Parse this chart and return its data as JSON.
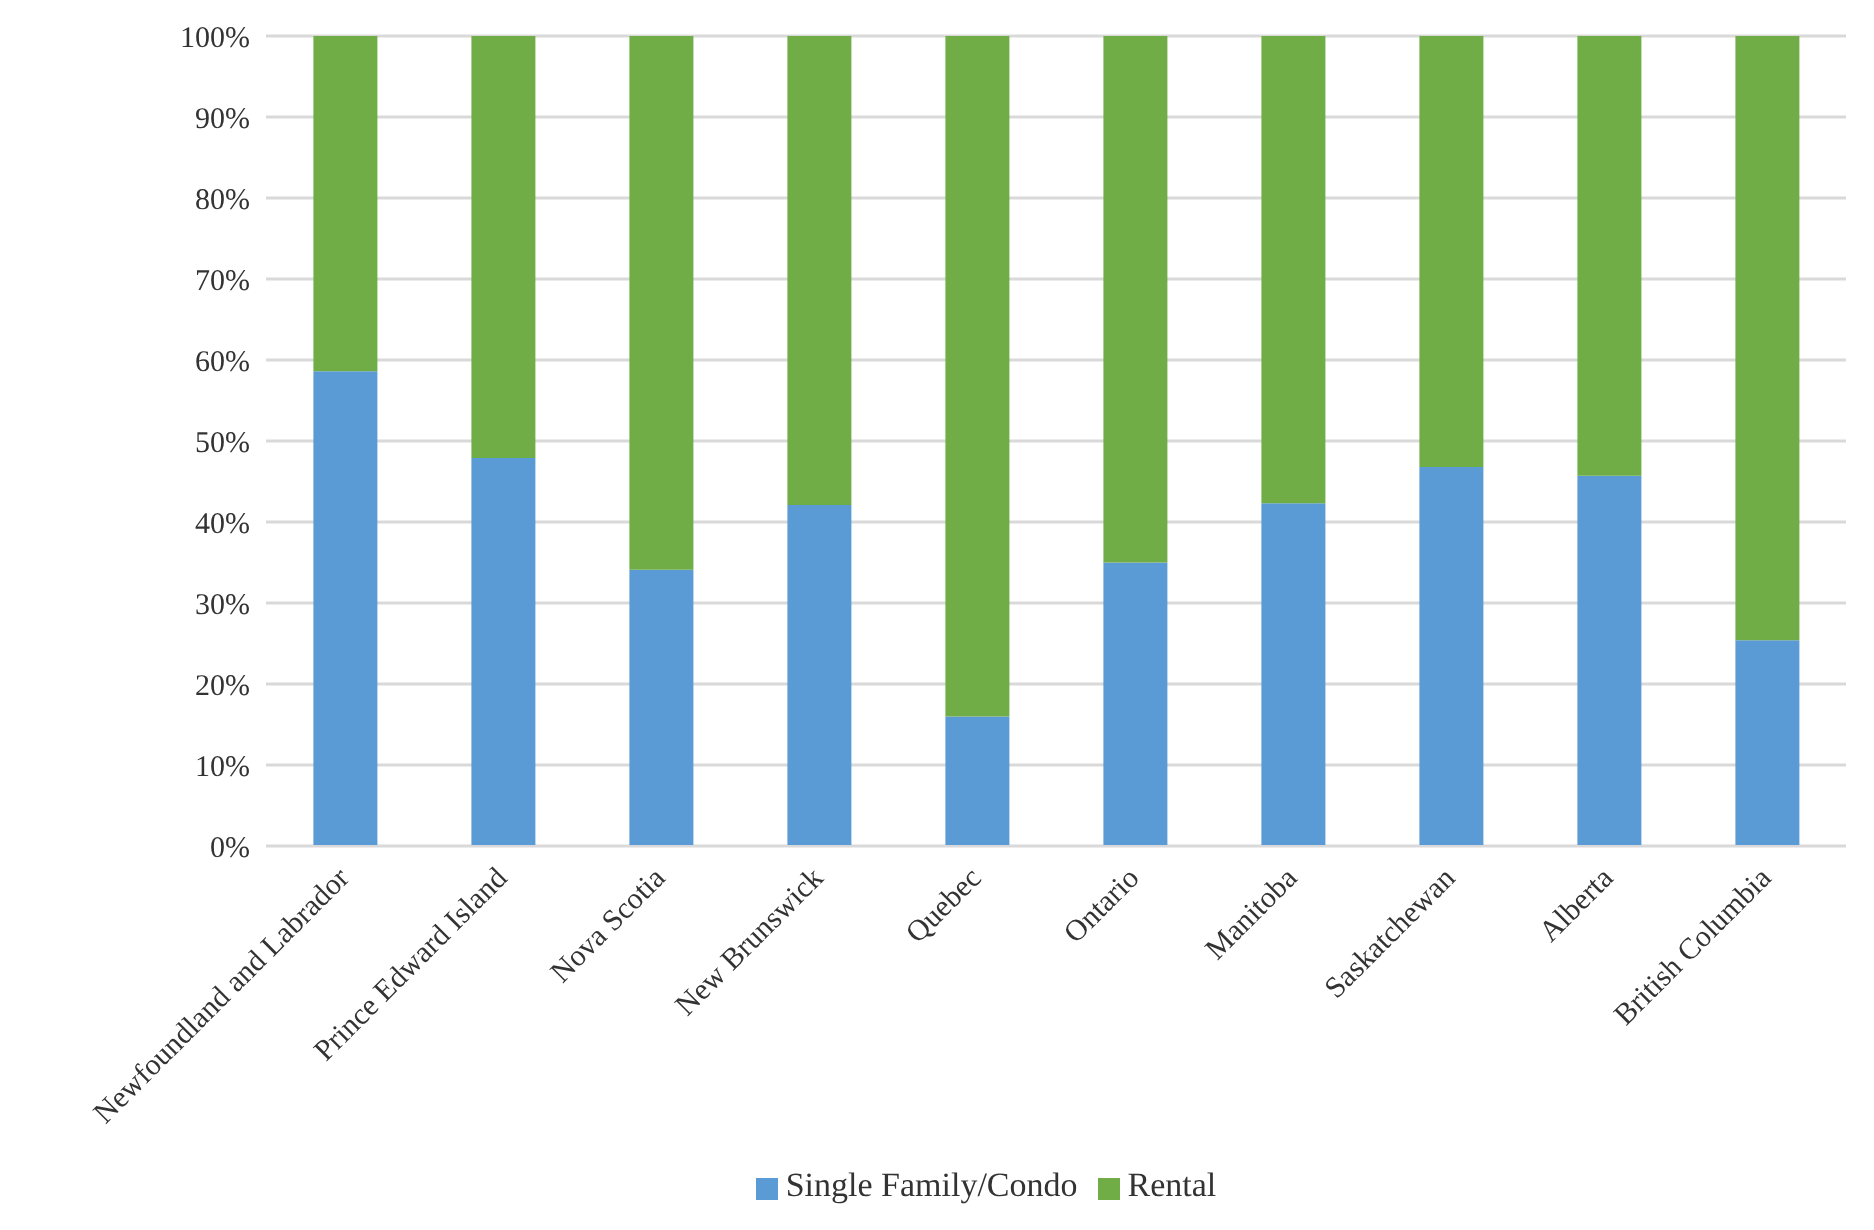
{
  "chart_data": {
    "type": "bar",
    "stacked": true,
    "categories": [
      "Newfoundland and Labrador",
      "Prince Edward Island",
      "Nova Scotia",
      "New Brunswick",
      "Quebec",
      "Ontario",
      "Manitoba",
      "Saskatchewan",
      "Alberta",
      "British Columbia"
    ],
    "series": [
      {
        "name": "Single Family/Condo",
        "color": "#5b9bd5",
        "values": [
          58.6,
          47.9,
          34.1,
          42.1,
          16.0,
          35.0,
          42.3,
          46.8,
          45.7,
          25.4
        ]
      },
      {
        "name": "Rental",
        "color": "#70ad47",
        "values": [
          41.4,
          52.1,
          65.9,
          57.9,
          84.0,
          65.0,
          57.7,
          53.2,
          54.3,
          74.6
        ]
      }
    ],
    "ylim": [
      0,
      100
    ],
    "yticks": [
      {
        "value": 0,
        "label": "0%"
      },
      {
        "value": 10,
        "label": "10%"
      },
      {
        "value": 20,
        "label": "20%"
      },
      {
        "value": 30,
        "label": "30%"
      },
      {
        "value": 40,
        "label": "40%"
      },
      {
        "value": 50,
        "label": "50%"
      },
      {
        "value": 60,
        "label": "60%"
      },
      {
        "value": 70,
        "label": "70%"
      },
      {
        "value": 80,
        "label": "80%"
      },
      {
        "value": 90,
        "label": "90%"
      },
      {
        "value": 100,
        "label": "100%"
      }
    ],
    "grid": "y",
    "legend": "bottom"
  }
}
